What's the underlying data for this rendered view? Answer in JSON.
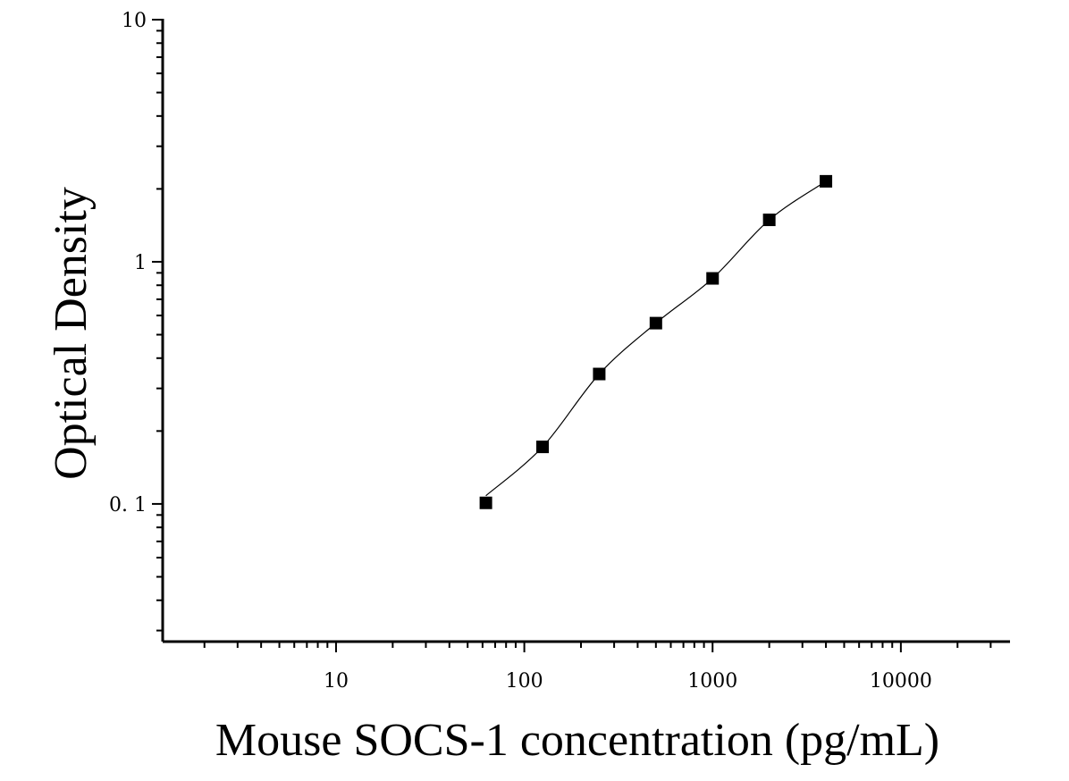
{
  "chart_data": {
    "type": "scatter",
    "xlabel": "Mouse SOCS-1 concentration (pg/mL)",
    "ylabel": "Optical Density",
    "x_scale": "log",
    "y_scale": "log",
    "xlim": [
      1.2,
      38000
    ],
    "ylim": [
      0.027,
      10
    ],
    "x_ticks": [
      {
        "value": 10,
        "label": "10"
      },
      {
        "value": 100,
        "label": "100"
      },
      {
        "value": 1000,
        "label": "1000"
      },
      {
        "value": 10000,
        "label": "10000"
      }
    ],
    "y_ticks": [
      {
        "value": 0.1,
        "label": "0. 1"
      },
      {
        "value": 1,
        "label": "1"
      },
      {
        "value": 10,
        "label": "10"
      }
    ],
    "series": [
      {
        "x": [
          62.5,
          125,
          250,
          500,
          1000,
          2000,
          4000
        ],
        "y": [
          0.101,
          0.172,
          0.344,
          0.558,
          0.854,
          1.49,
          2.15
        ]
      }
    ],
    "fit_curve": true,
    "grid": false,
    "legend": "none",
    "marker": "square",
    "color": "#000000"
  }
}
